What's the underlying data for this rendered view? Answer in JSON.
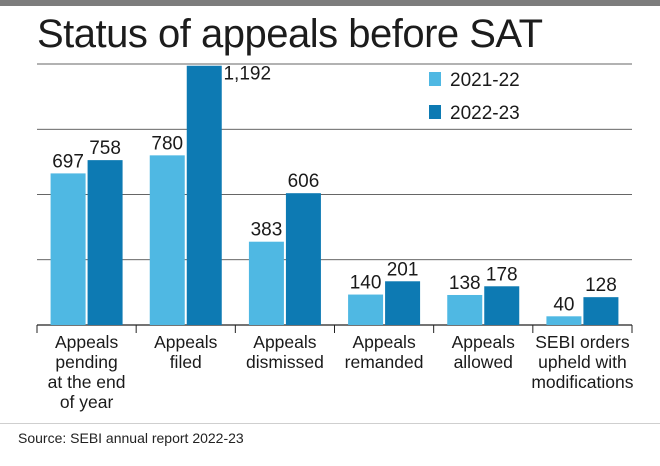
{
  "title": "Status of appeals before SAT",
  "source": "Source: SEBI annual report 2022-23",
  "colors": {
    "series_1": "#4fb8e3",
    "series_2": "#0d7ab3",
    "grid": "#222222"
  },
  "chart_data": {
    "type": "bar",
    "title": "Status of appeals before SAT",
    "categories": [
      [
        "Appeals",
        "pending",
        "at the end",
        "of year"
      ],
      [
        "Appeals",
        "filed"
      ],
      [
        "Appeals",
        "dismissed"
      ],
      [
        "Appeals",
        "remanded"
      ],
      [
        "Appeals",
        "allowed"
      ],
      [
        "SEBI orders",
        "upheld with",
        "modifications"
      ]
    ],
    "series": [
      {
        "name": "2021-22",
        "values": [
          697,
          780,
          383,
          140,
          138,
          40
        ],
        "labels": [
          "697",
          "780",
          "383",
          "140",
          "138",
          "40"
        ]
      },
      {
        "name": "2022-23",
        "values": [
          758,
          1192,
          606,
          201,
          178,
          128
        ],
        "labels": [
          "758",
          "1,192",
          "606",
          "201",
          "178",
          "128"
        ]
      }
    ],
    "ylim": [
      0,
      1200
    ],
    "grid": true,
    "legend_position": "top-right",
    "xlabel": "",
    "ylabel": ""
  }
}
